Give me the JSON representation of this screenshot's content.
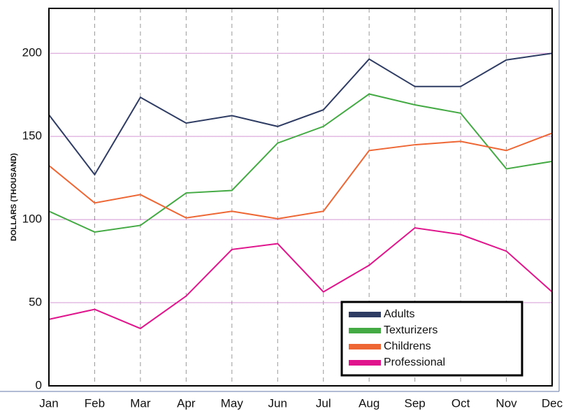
{
  "chart_data": {
    "type": "line",
    "y_label": "DOLLARS (THOUSAND)",
    "categories": [
      "Jan",
      "Feb",
      "Mar",
      "Apr",
      "May",
      "Jun",
      "Jul",
      "Aug",
      "Sep",
      "Oct",
      "Nov",
      "Dec"
    ],
    "series": [
      {
        "name": "Adults",
        "color": "#2e3b63",
        "values": [
          163,
          127,
          173.5,
          158,
          162.5,
          156,
          166,
          196.5,
          180,
          180,
          196,
          200
        ]
      },
      {
        "name": "Texturizers",
        "color": "#44aa44",
        "values": [
          105,
          92.5,
          96.5,
          116,
          117.5,
          146,
          156,
          175.5,
          169,
          164,
          130.5,
          135
        ]
      },
      {
        "name": "Childrens",
        "color": "#ee6633",
        "values": [
          132.5,
          110,
          115,
          101,
          105,
          100.5,
          105,
          141.5,
          145,
          147,
          141.5,
          152
        ]
      },
      {
        "name": "Professional",
        "color": "#e0148c",
        "values": [
          40,
          46,
          34.5,
          54,
          82,
          85.5,
          56.5,
          72.5,
          95,
          91,
          81,
          56.5
        ]
      }
    ],
    "ylim": [
      0,
      227
    ],
    "yticks": [
      0,
      50,
      100,
      150,
      200
    ],
    "grid": true,
    "legend": "lower right"
  }
}
